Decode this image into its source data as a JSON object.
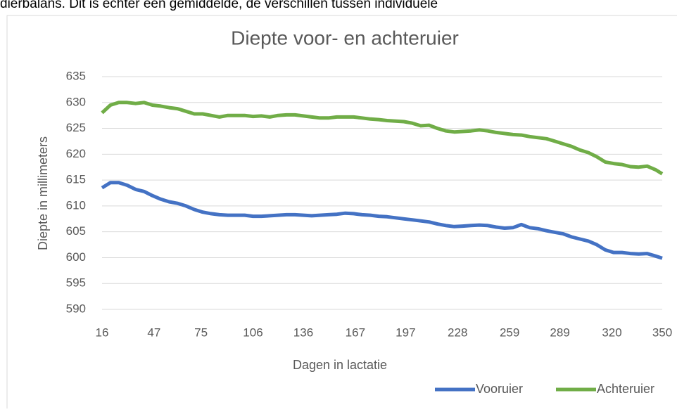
{
  "context_text": "dierbalans. Dit is echter een gemiddelde, de verschillen tussen individuele",
  "chart_data": {
    "type": "line",
    "title": "Diepte voor- en achteruier",
    "xlabel": "Dagen in lactatie",
    "ylabel": "Diepte in millimeters",
    "x": [
      16,
      21,
      26,
      31,
      36,
      41,
      46,
      51,
      56,
      61,
      66,
      71,
      76,
      81,
      86,
      91,
      96,
      101,
      106,
      111,
      116,
      121,
      126,
      131,
      136,
      141,
      146,
      151,
      156,
      161,
      166,
      171,
      176,
      181,
      186,
      191,
      196,
      201,
      206,
      211,
      216,
      221,
      226,
      231,
      236,
      241,
      246,
      251,
      256,
      261,
      266,
      271,
      276,
      281,
      286,
      291,
      296,
      301,
      306,
      311,
      316,
      321,
      326,
      331,
      336,
      341,
      346,
      350
    ],
    "series": [
      {
        "name": "Vooruier",
        "color": "#4472c4",
        "values": [
          613.5,
          614.5,
          614.5,
          614,
          613.2,
          612.8,
          612,
          611.3,
          610.8,
          610.5,
          610,
          609.3,
          608.8,
          608.5,
          608.3,
          608.2,
          608.2,
          608.2,
          608,
          608,
          608.1,
          608.2,
          608.3,
          608.3,
          608.2,
          608.1,
          608.2,
          608.3,
          608.4,
          608.6,
          608.5,
          608.3,
          608.2,
          608,
          607.9,
          607.7,
          607.5,
          607.3,
          607.1,
          606.9,
          606.5,
          606.2,
          606,
          606.1,
          606.2,
          606.3,
          606.2,
          605.9,
          605.7,
          605.8,
          606.4,
          605.8,
          605.6,
          605.2,
          604.9,
          604.6,
          604,
          603.6,
          603.2,
          602.5,
          601.5,
          601,
          601,
          600.8,
          600.7,
          600.8,
          600.3,
          599.9
        ]
      },
      {
        "name": "Achteruier",
        "color": "#70ad47",
        "values": [
          628,
          629.5,
          630,
          630,
          629.8,
          630,
          629.5,
          629.3,
          629,
          628.8,
          628.3,
          627.8,
          627.8,
          627.5,
          627.2,
          627.5,
          627.5,
          627.5,
          627.3,
          627.4,
          627.2,
          627.5,
          627.6,
          627.6,
          627.4,
          627.2,
          627,
          627,
          627.2,
          627.2,
          627.2,
          627,
          626.8,
          626.7,
          626.5,
          626.4,
          626.3,
          626,
          625.5,
          625.6,
          625,
          624.5,
          624.3,
          624.4,
          624.5,
          624.7,
          624.5,
          624.2,
          624,
          623.8,
          623.7,
          623.4,
          623.2,
          623,
          622.5,
          622,
          621.5,
          620.8,
          620.3,
          619.5,
          618.5,
          618.2,
          618,
          617.6,
          617.5,
          617.7,
          617,
          616.2
        ]
      }
    ],
    "xlim": [
      16,
      350
    ],
    "xticks": [
      16,
      47,
      75,
      106,
      136,
      167,
      197,
      228,
      259,
      289,
      320,
      350
    ],
    "ylim": [
      590,
      635
    ],
    "yticks": [
      590,
      595,
      600,
      605,
      610,
      615,
      620,
      625,
      630,
      635
    ],
    "grid": true,
    "legend": "bottom-right"
  }
}
